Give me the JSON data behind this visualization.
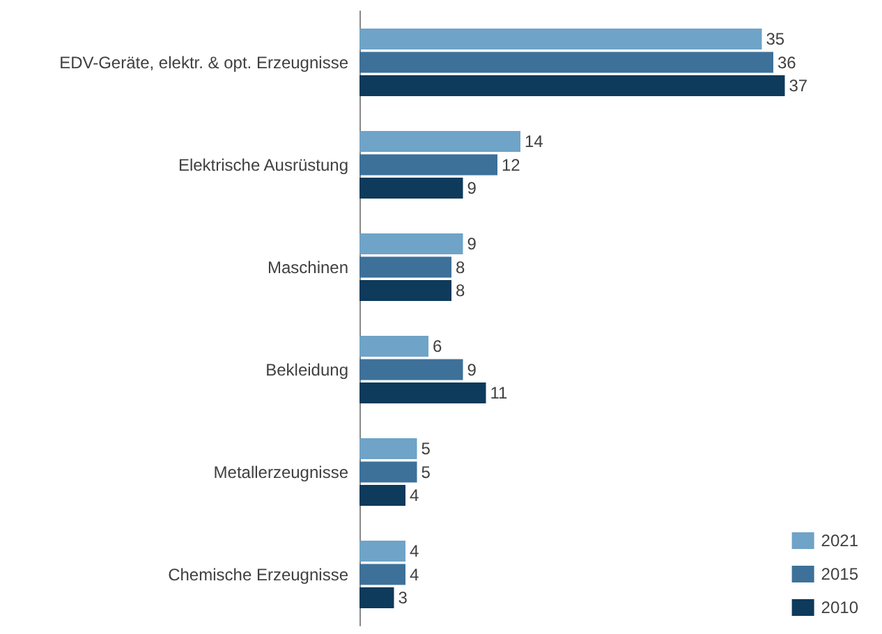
{
  "chart_data": {
    "type": "bar",
    "orientation": "horizontal",
    "categories": [
      "EDV-Geräte, elektr. & opt. Erzeugnisse",
      "Elektrische Ausrüstung",
      "Maschinen",
      "Bekleidung",
      "Metallerzeugnisse",
      "Chemische Erzeugnisse"
    ],
    "series": [
      {
        "name": "2021",
        "color": "#6fa3c7",
        "values": [
          35,
          14,
          9,
          6,
          5,
          4
        ]
      },
      {
        "name": "2015",
        "color": "#3d7199",
        "values": [
          36,
          12,
          8,
          9,
          5,
          4
        ]
      },
      {
        "name": "2010",
        "color": "#0e3a5b",
        "values": [
          37,
          9,
          8,
          11,
          4,
          3
        ]
      }
    ],
    "data_labels": true,
    "legend": "bottom right"
  }
}
